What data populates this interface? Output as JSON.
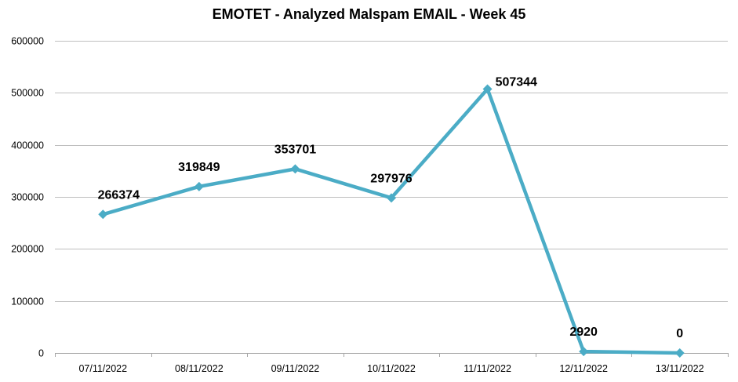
{
  "chart_data": {
    "type": "line",
    "title": "EMOTET - Analyzed Malspam EMAIL - Week 45",
    "categories": [
      "07/11/2022",
      "08/11/2022",
      "09/11/2022",
      "10/11/2022",
      "11/11/2022",
      "12/11/2022",
      "13/11/2022"
    ],
    "series": [
      {
        "values": [
          266374,
          319849,
          353701,
          297976,
          507344,
          2920,
          0
        ],
        "color": "#4bacc6"
      }
    ],
    "ylim": [
      0,
      600000
    ],
    "yticks": [
      0,
      100000,
      200000,
      300000,
      400000,
      500000,
      600000
    ],
    "xlabel": "",
    "ylabel": "",
    "grid": true,
    "legend": "none",
    "data_labels": true
  }
}
